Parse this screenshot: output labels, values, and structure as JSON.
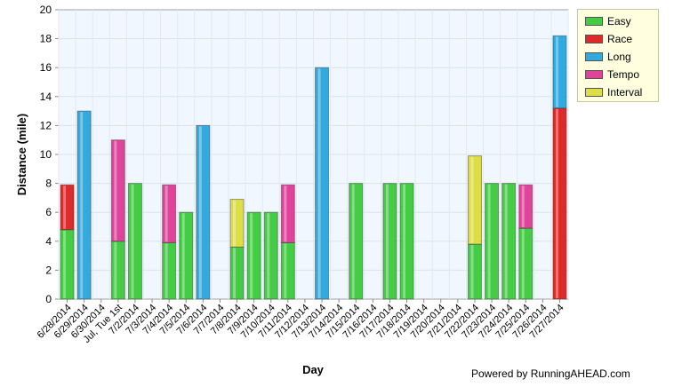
{
  "chart_data": {
    "type": "bar",
    "stacked": true,
    "xlabel": "Day",
    "ylabel": "Distance (mile)",
    "ylim": [
      0,
      20
    ],
    "yticks": [
      0,
      2,
      4,
      6,
      8,
      10,
      12,
      14,
      16,
      18,
      20
    ],
    "grid": true,
    "legend_position": "top-right",
    "categories": [
      "6/28/2014",
      "6/29/2014",
      "6/30/2014",
      "Jul, Tue 1st",
      "7/2/2014",
      "7/3/2014",
      "7/4/2014",
      "7/5/2014",
      "7/6/2014",
      "7/7/2014",
      "7/8/2014",
      "7/9/2014",
      "7/10/2014",
      "7/11/2014",
      "7/12/2014",
      "7/13/2014",
      "7/14/2014",
      "7/15/2014",
      "7/16/2014",
      "7/17/2014",
      "7/18/2014",
      "7/19/2014",
      "7/20/2014",
      "7/21/2014",
      "7/22/2014",
      "7/23/2014",
      "7/24/2014",
      "7/25/2014",
      "7/26/2014",
      "7/27/2014"
    ],
    "series": [
      {
        "name": "Easy",
        "color": "#44cc44",
        "values": [
          4.8,
          0,
          0,
          4,
          8,
          0,
          3.9,
          6,
          0,
          0,
          3.6,
          6,
          6,
          3.9,
          0,
          0,
          0,
          8,
          0,
          8,
          8,
          0,
          0,
          0,
          3.8,
          8,
          8,
          4.9,
          0,
          0
        ]
      },
      {
        "name": "Race",
        "color": "#dd2b2b",
        "values": [
          3.1,
          0,
          0,
          0,
          0,
          0,
          0,
          0,
          0,
          0,
          0,
          0,
          0,
          0,
          0,
          0,
          0,
          0,
          0,
          0,
          0,
          0,
          0,
          0,
          0,
          0,
          0,
          0,
          0,
          13.2
        ]
      },
      {
        "name": "Long",
        "color": "#33aadd",
        "values": [
          0,
          13,
          0,
          0,
          0,
          0,
          0,
          0,
          12,
          0,
          0,
          0,
          0,
          0,
          0,
          16,
          0,
          0,
          0,
          0,
          0,
          0,
          0,
          0,
          0,
          0,
          0,
          0,
          0,
          5
        ]
      },
      {
        "name": "Tempo",
        "color": "#e0449a",
        "values": [
          0,
          0,
          0,
          7,
          0,
          0,
          4,
          0,
          0,
          0,
          0,
          0,
          0,
          4,
          0,
          0,
          0,
          0,
          0,
          0,
          0,
          0,
          0,
          0,
          0,
          0,
          0,
          3,
          0,
          0
        ]
      },
      {
        "name": "Interval",
        "color": "#dddd44",
        "values": [
          0,
          0,
          0,
          0,
          0,
          0,
          0,
          0,
          0,
          0,
          3.3,
          0,
          0,
          0,
          0,
          0,
          0,
          0,
          0,
          0,
          0,
          0,
          0,
          0,
          6.1,
          0,
          0,
          0,
          0,
          0
        ]
      }
    ]
  },
  "footer": "Powered by RunningAHEAD.com"
}
